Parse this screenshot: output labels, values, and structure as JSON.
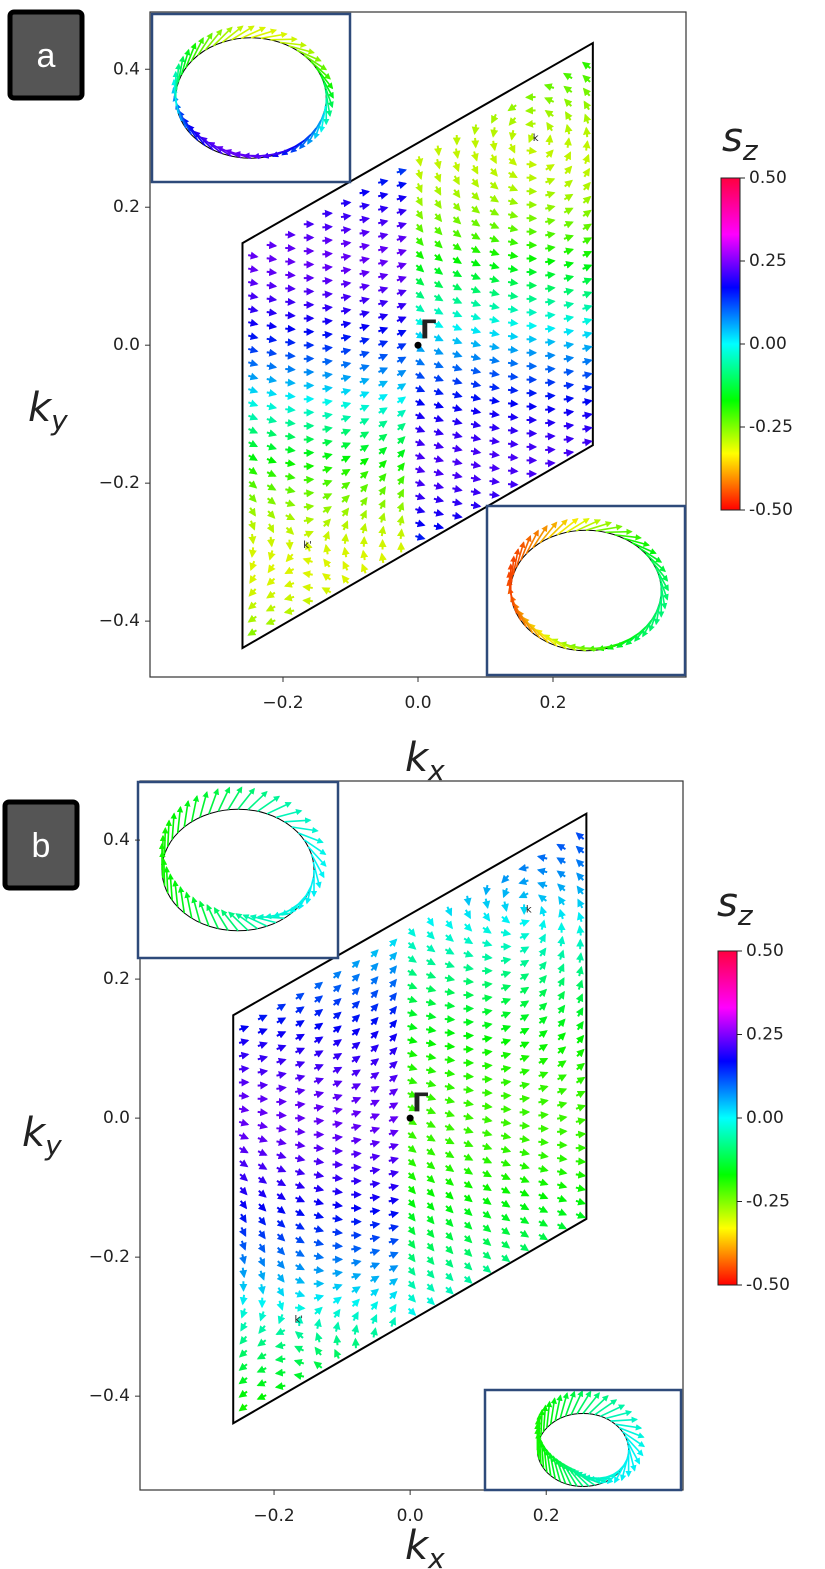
{
  "chart_data": [
    {
      "type": "quiver",
      "panel_label": "a",
      "xlabel": {
        "text": "k",
        "sub": "x"
      },
      "ylabel": {
        "text": "k",
        "sub": "y"
      },
      "xlim": [
        -0.397,
        0.397
      ],
      "ylim": [
        -0.481,
        0.483
      ],
      "xticks": [
        {
          "value": -0.2,
          "label": "−0.2"
        },
        {
          "value": 0,
          "label": "0.0"
        },
        0.2
      ],
      "yticks": [
        {
          "value": -0.4,
          "label": "−0.4"
        },
        {
          "value": -0.2,
          "label": "−0.2"
        },
        {
          "value": 0,
          "label": "0.0"
        },
        0.2,
        0.4
      ],
      "annotations": [
        "Γ",
        "k",
        "k'"
      ],
      "colorbar": {
        "label": {
          "text": "s",
          "sub": "z"
        },
        "lim": [
          -0.5,
          0.5
        ],
        "ticks": [
          {
            "value": 0.5,
            "label": "0.50"
          },
          {
            "value": 0.25,
            "label": "0.25"
          },
          {
            "value": 0,
            "label": "0.00"
          },
          {
            "value": -0.25,
            "label": "-0.25"
          },
          {
            "value": -0.5,
            "label": "-0.50"
          }
        ]
      }
    },
    {
      "type": "quiver",
      "panel_label": "b",
      "xlabel": {
        "text": "k",
        "sub": "x"
      },
      "ylabel": {
        "text": "k",
        "sub": "y"
      },
      "xlim": [
        -0.397,
        0.401
      ],
      "ylim": [
        -0.535,
        0.485
      ],
      "xticks": [
        {
          "value": -0.2,
          "label": "−0.2"
        },
        {
          "value": 0,
          "label": "0.0"
        },
        0.2
      ],
      "yticks": [
        {
          "value": -0.4,
          "label": "−0.4"
        },
        {
          "value": -0.2,
          "label": "−0.2"
        },
        {
          "value": 0,
          "label": "0.0"
        },
        0.2,
        0.4
      ],
      "annotations": [
        "Γ",
        "k",
        "k'"
      ],
      "colorbar": {
        "label": {
          "text": "s",
          "sub": "z"
        },
        "lim": [
          -0.5,
          0.5
        ],
        "ticks": [
          {
            "value": 0.5,
            "label": "0.50"
          },
          {
            "value": 0.25,
            "label": "0.25"
          },
          {
            "value": 0,
            "label": "0.00"
          },
          {
            "value": -0.25,
            "label": "-0.25"
          },
          {
            "value": -0.5,
            "label": "-0.50"
          }
        ]
      }
    }
  ]
}
